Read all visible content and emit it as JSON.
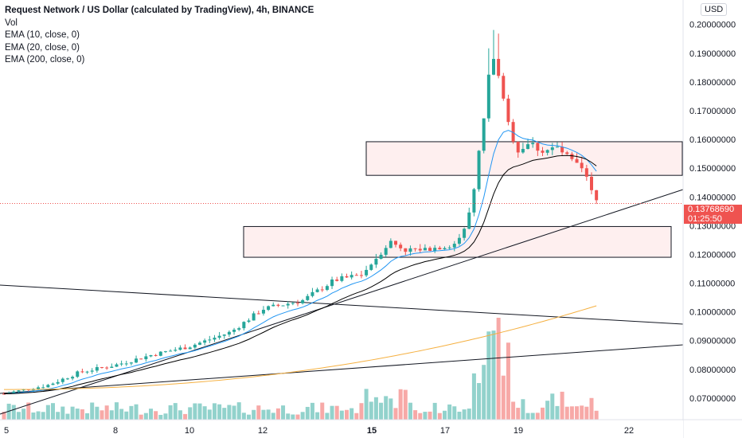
{
  "legend": {
    "title": "Request Network / US Dollar (calculated by TradingView), 4h, BINANCE",
    "lines": [
      "Vol",
      "EMA (10, close, 0)",
      "EMA (20, close, 0)",
      "EMA (200, close, 0)"
    ]
  },
  "currency_badge": "USD",
  "price_tag": {
    "price": "0.13768690",
    "countdown": "01:25:50"
  },
  "chart_data": {
    "type": "candlestick",
    "symbol": "Request Network / US Dollar",
    "interval": "4h",
    "exchange": "BINANCE",
    "y_ticks": [
      "0.07000000",
      "0.08000000",
      "0.09000000",
      "0.10000000",
      "0.11000000",
      "0.12000000",
      "0.13000000",
      "0.14000000",
      "0.15000000",
      "0.16000000",
      "0.17000000",
      "0.18000000",
      "0.19000000",
      "0.20000000",
      "0.2"
    ],
    "x_ticks": [
      "5",
      "8",
      "10",
      "12",
      "15",
      "17",
      "19",
      "22"
    ],
    "ylim": [
      0.0625,
      0.2085
    ],
    "colors": {
      "up": "#26a69a",
      "down": "#ef5350",
      "ema10": "#2196f3",
      "ema20": "#000000",
      "ema200": "#f5b041"
    },
    "zones": [
      {
        "low": 0.1475,
        "high": 0.1592
      },
      {
        "low": 0.119,
        "high": 0.1297
      }
    ],
    "last_price": 0.1377
  }
}
